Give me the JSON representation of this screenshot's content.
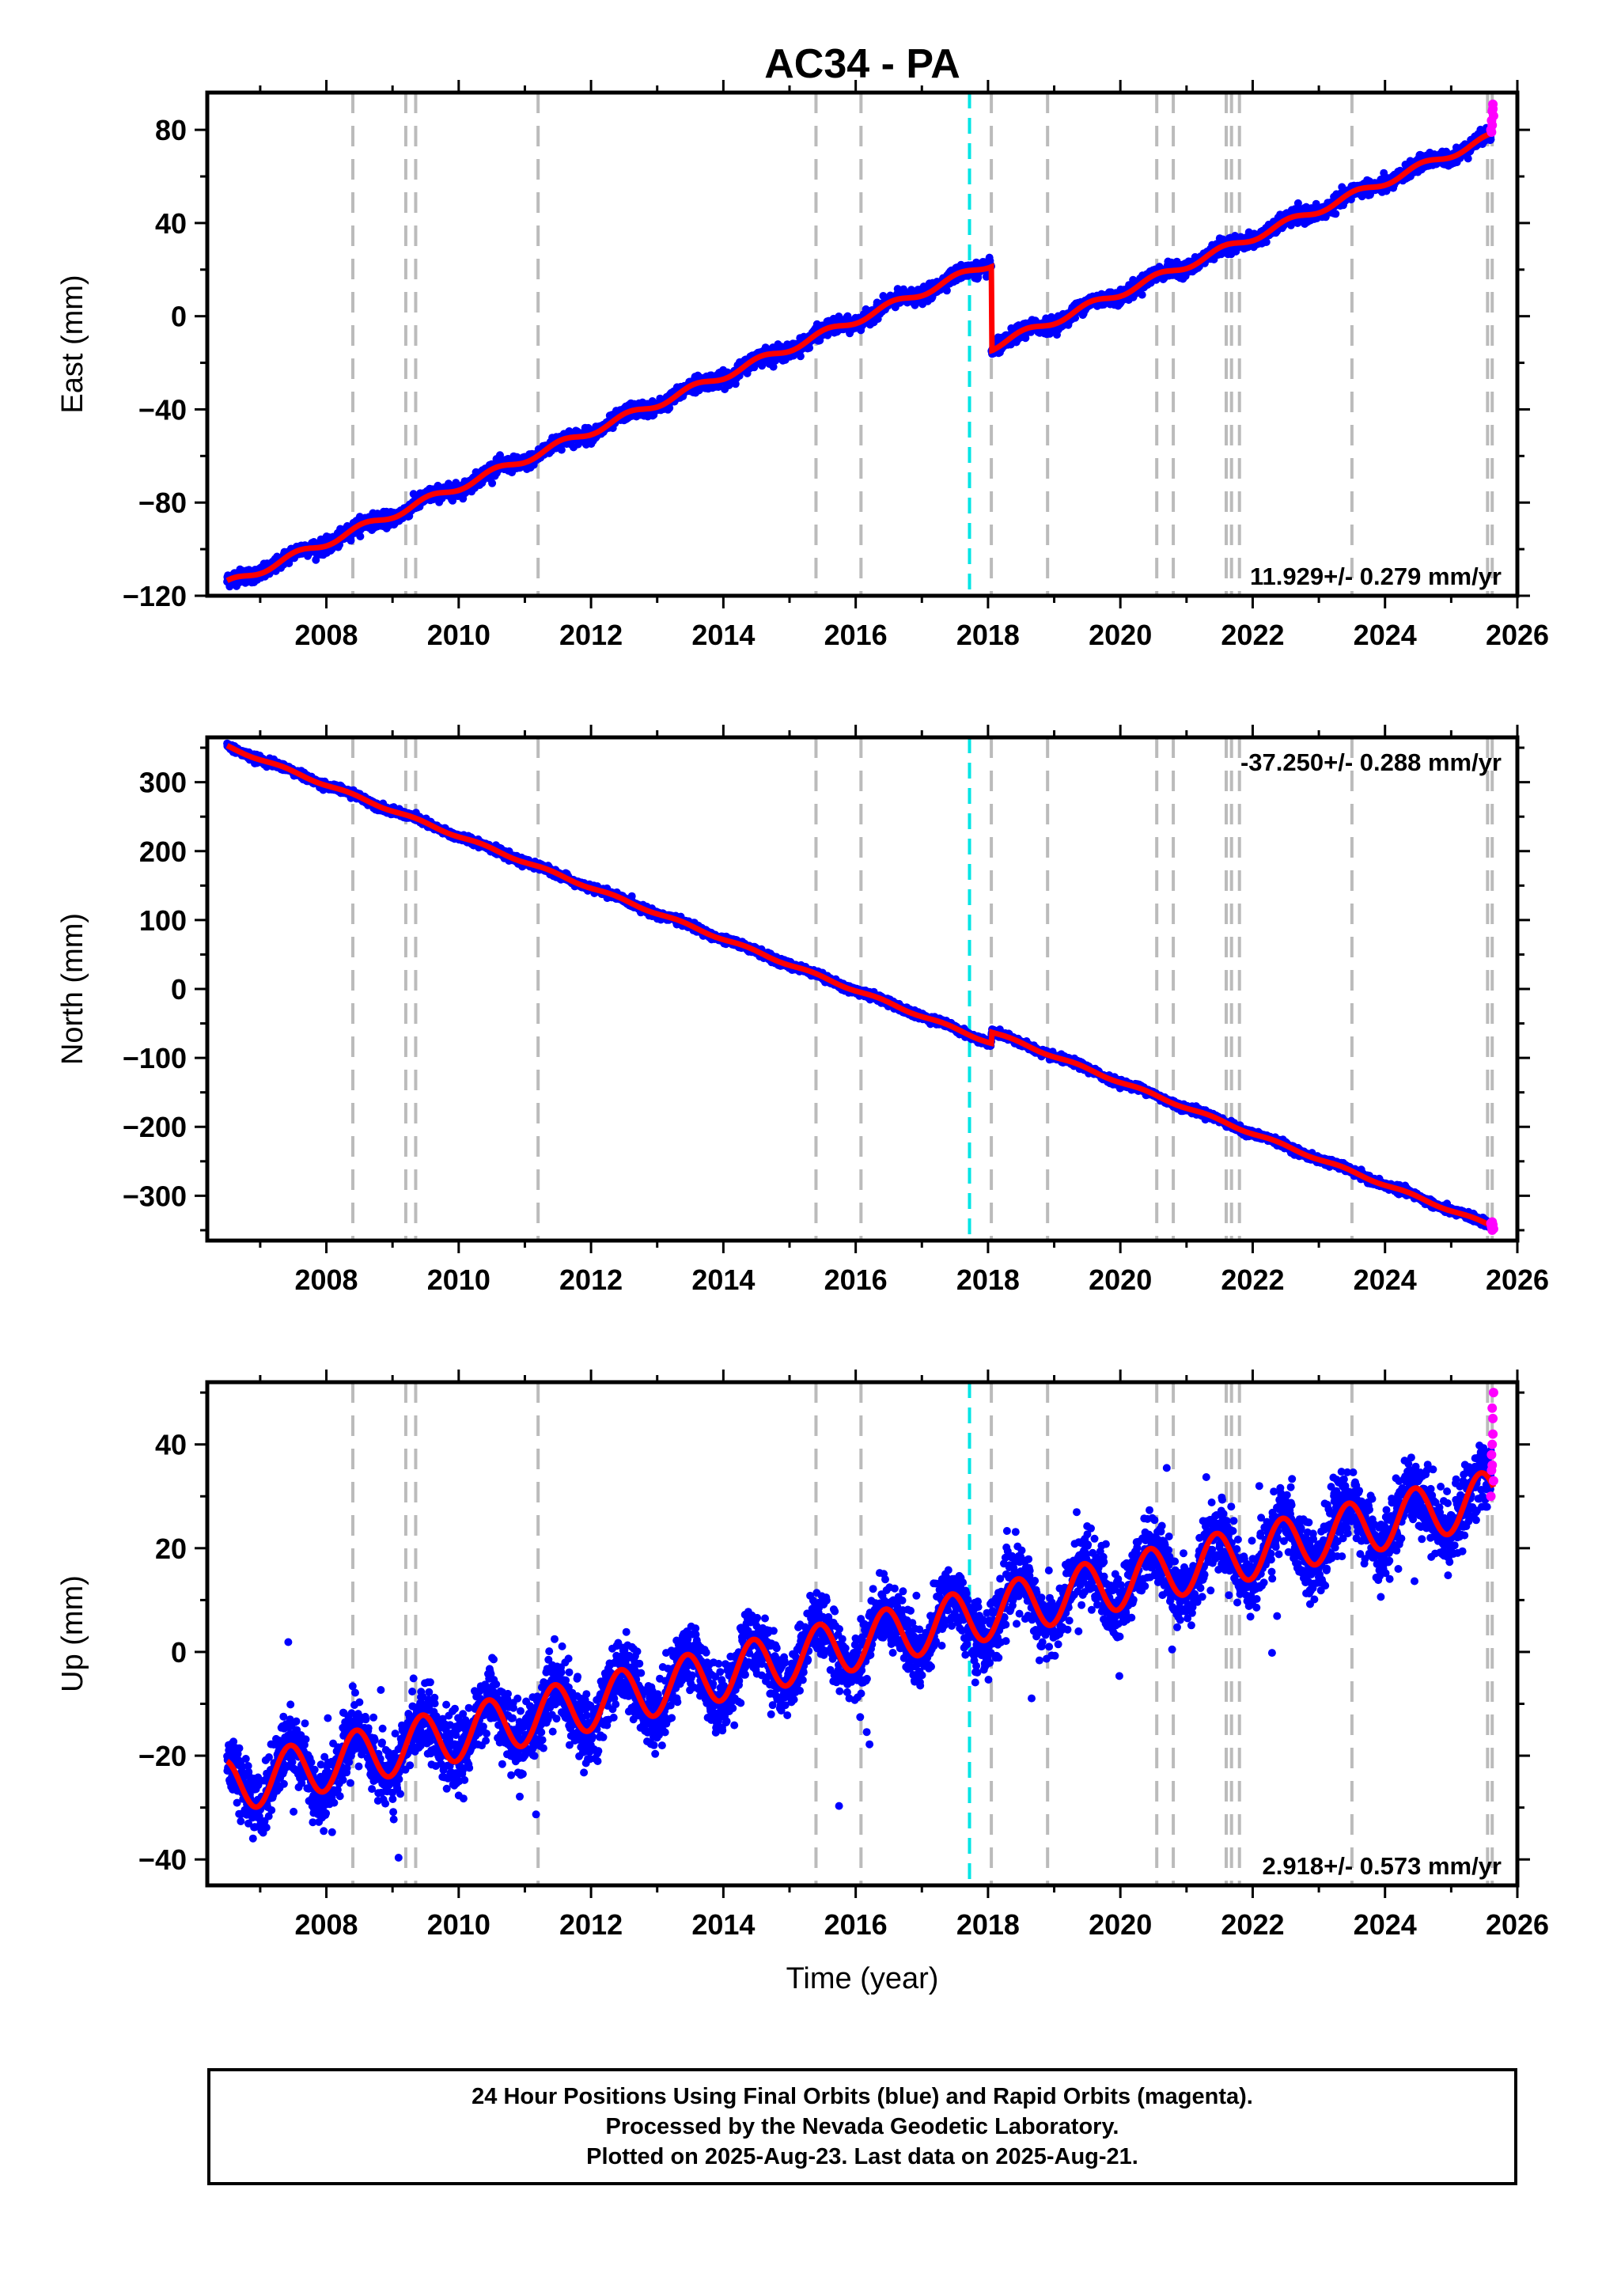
{
  "title": "AC34 - PA",
  "xlabel": "Time (year)",
  "footer": {
    "line1": "24 Hour Positions Using Final Orbits (blue) and Rapid Orbits (magenta).",
    "line2": "Processed by the Nevada Geodetic Laboratory.",
    "line3": "Plotted on 2025-Aug-23. Last data on 2025-Aug-21."
  },
  "colors": {
    "final_orbits": "#0000ff",
    "rapid_orbits": "#ff00ff",
    "model": "#ff0000",
    "equipment_change": "#bbbbbb",
    "earthquake": "#00e5e5"
  },
  "chart_data": [
    {
      "type": "scatter",
      "component": "East",
      "ylabel": "East (mm)",
      "rate_label": "11.929+/- 0.279 mm/yr",
      "rate_position": "bottom-right",
      "xlim": [
        2006.2,
        2026.0
      ],
      "ylim": [
        -120,
        96
      ],
      "xticks": [
        2008,
        2010,
        2012,
        2014,
        2016,
        2018,
        2020,
        2022,
        2024,
        2026
      ],
      "yticks": [
        -120,
        -80,
        -40,
        0,
        40,
        80
      ],
      "equipment_changes": [
        2008.4,
        2009.2,
        2009.35,
        2011.2,
        2015.4,
        2016.08,
        2018.05,
        2018.9,
        2020.55,
        2020.8,
        2021.6,
        2021.68,
        2021.8,
        2023.5,
        2025.55,
        2025.62
      ],
      "earthquakes": [
        2017.72
      ],
      "model": {
        "start": 2006.5,
        "end": 2025.64,
        "value_at_start": -115,
        "rate": 11.929,
        "annual_amplitude": 1.6,
        "annual_phase": 0.3,
        "offsets": [
          {
            "year": 2018.05,
            "value": -36
          }
        ]
      },
      "noise": 1.5,
      "outlier_rate": 0.0,
      "rapid_points": [
        [
          2025.6,
          80
        ],
        [
          2025.61,
          84
        ],
        [
          2025.62,
          88
        ],
        [
          2025.63,
          91
        ],
        [
          2025.64,
          86
        ],
        [
          2025.62,
          82
        ],
        [
          2025.63,
          89
        ],
        [
          2025.61,
          79
        ]
      ]
    },
    {
      "type": "scatter",
      "component": "North",
      "ylabel": "North (mm)",
      "rate_label": "-37.250+/- 0.288 mm/yr",
      "rate_position": "top-right",
      "xlim": [
        2006.2,
        2026.0
      ],
      "ylim": [
        -365,
        365
      ],
      "xticks": [
        2008,
        2010,
        2012,
        2014,
        2016,
        2018,
        2020,
        2022,
        2024,
        2026
      ],
      "yticks": [
        -300,
        -200,
        -100,
        0,
        100,
        200,
        300
      ],
      "equipment_changes": [
        2008.4,
        2009.2,
        2009.35,
        2011.2,
        2015.4,
        2016.08,
        2018.05,
        2018.9,
        2020.55,
        2020.8,
        2021.6,
        2021.68,
        2021.8,
        2023.5,
        2025.55,
        2025.62
      ],
      "earthquakes": [
        2017.72
      ],
      "model": {
        "start": 2006.5,
        "end": 2025.64,
        "value_at_start": 352,
        "rate": -37.25,
        "annual_amplitude": 1.8,
        "annual_phase": 0.1,
        "offsets": [
          {
            "year": 2018.05,
            "value": 16
          }
        ]
      },
      "noise": 2.5,
      "outlier_rate": 0.0,
      "rapid_points": [
        [
          2025.6,
          -340
        ],
        [
          2025.61,
          -345
        ],
        [
          2025.62,
          -350
        ],
        [
          2025.63,
          -342
        ],
        [
          2025.64,
          -348
        ],
        [
          2025.62,
          -338
        ]
      ]
    },
    {
      "type": "scatter",
      "component": "Up",
      "ylabel": "Up (mm)",
      "rate_label": "2.918+/- 0.573 mm/yr",
      "rate_position": "bottom-right",
      "xlim": [
        2006.2,
        2026.0
      ],
      "ylim": [
        -45,
        52
      ],
      "xticks": [
        2008,
        2010,
        2012,
        2014,
        2016,
        2018,
        2020,
        2022,
        2024,
        2026
      ],
      "yticks": [
        -40,
        -20,
        0,
        20,
        40
      ],
      "equipment_changes": [
        2008.4,
        2009.2,
        2009.35,
        2011.2,
        2015.4,
        2016.08,
        2018.05,
        2018.9,
        2020.55,
        2020.8,
        2021.6,
        2021.68,
        2021.8,
        2023.5,
        2025.55,
        2025.62
      ],
      "earthquakes": [
        2017.72
      ],
      "model": {
        "start": 2006.5,
        "end": 2025.64,
        "value_at_start": -26,
        "rate": 2.918,
        "annual_amplitude": 5.2,
        "annual_phase": 0.2,
        "offsets": []
      },
      "noise": 3.2,
      "outlier_rate": 0.01,
      "rapid_points": [
        [
          2025.6,
          30
        ],
        [
          2025.61,
          35
        ],
        [
          2025.62,
          40
        ],
        [
          2025.63,
          45
        ],
        [
          2025.64,
          50
        ],
        [
          2025.62,
          47
        ],
        [
          2025.63,
          42
        ],
        [
          2025.61,
          38
        ],
        [
          2025.64,
          33
        ],
        [
          2025.62,
          36
        ]
      ]
    }
  ]
}
